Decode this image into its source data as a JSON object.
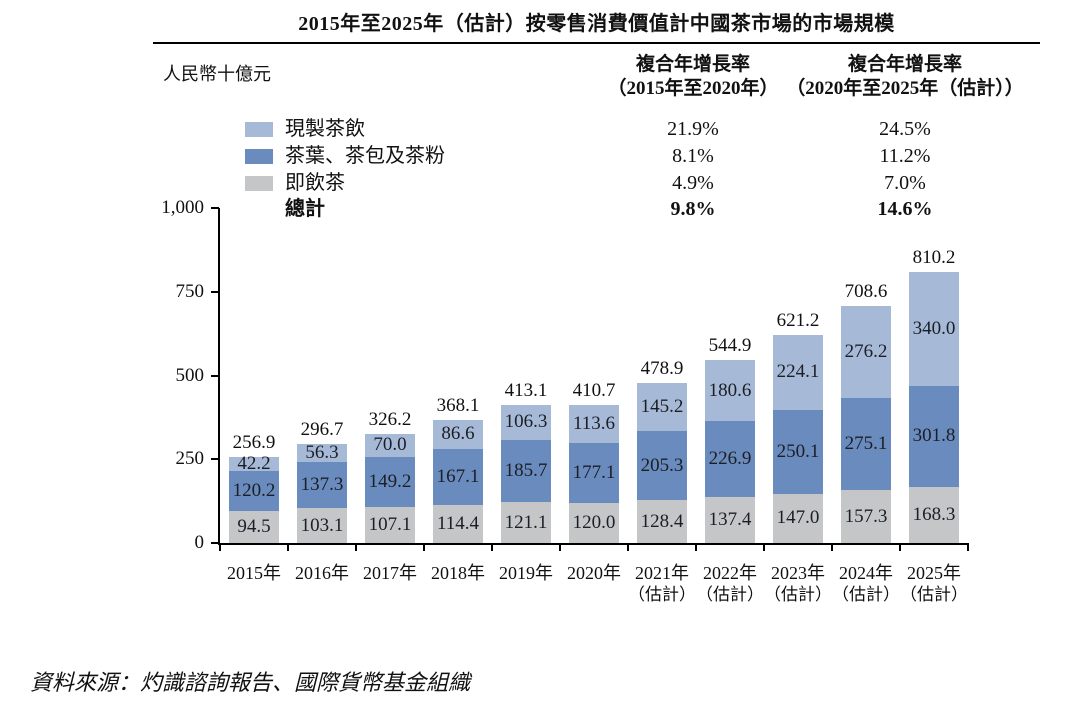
{
  "title": "2015年至2025年（估計）按零售消費價值計中國茶市場的市場規模",
  "unit_label": "人民幣十億元",
  "cagr_columns": [
    {
      "line1": "複合年增長率",
      "line2": "（2015年至2020年）"
    },
    {
      "line1": "複合年增長率",
      "line2": "（2020年至2025年（估計））"
    }
  ],
  "legend": [
    {
      "label": "現製茶飲",
      "color": "#a6bad7",
      "cagr_2015_2020": "21.9%",
      "cagr_2020_2025": "24.5%"
    },
    {
      "label": "茶葉、茶包及茶粉",
      "color": "#6a8bbd",
      "cagr_2015_2020": "8.1%",
      "cagr_2020_2025": "11.2%"
    },
    {
      "label": "即飲茶",
      "color": "#c5c6c8",
      "cagr_2015_2020": "4.9%",
      "cagr_2020_2025": "7.0%"
    },
    {
      "label": "總計",
      "cagr_2015_2020": "9.8%",
      "cagr_2020_2025": "14.6%"
    }
  ],
  "chart_data": {
    "type": "bar",
    "stacked": true,
    "title": "2015年至2025年（估計）按零售消費價值計中國茶市場的市場規模",
    "ylabel": "人民幣十億元",
    "ylim": [
      0,
      1000
    ],
    "yticks": [
      0,
      250,
      500,
      750,
      1000
    ],
    "ytick_labels": [
      "0",
      "250",
      "500",
      "750",
      "1,000"
    ],
    "grid": false,
    "legend_position": "top-left",
    "categories": [
      {
        "year": "2015年",
        "note": ""
      },
      {
        "year": "2016年",
        "note": ""
      },
      {
        "year": "2017年",
        "note": ""
      },
      {
        "year": "2018年",
        "note": ""
      },
      {
        "year": "2019年",
        "note": ""
      },
      {
        "year": "2020年",
        "note": ""
      },
      {
        "year": "2021年",
        "note": "（估計）"
      },
      {
        "year": "2022年",
        "note": "（估計）"
      },
      {
        "year": "2023年",
        "note": "（估計）"
      },
      {
        "year": "2024年",
        "note": "（估計）"
      },
      {
        "year": "2025年",
        "note": "（估計）"
      }
    ],
    "series": [
      {
        "name": "現製茶飲",
        "color": "#a6bad7",
        "position": "top",
        "values": [
          42.2,
          56.3,
          70.0,
          86.6,
          106.3,
          113.6,
          145.2,
          180.6,
          224.1,
          276.2,
          340.0
        ]
      },
      {
        "name": "茶葉、茶包及茶粉",
        "color": "#6a8bbd",
        "position": "middle",
        "values": [
          120.2,
          137.3,
          149.2,
          167.1,
          185.7,
          177.1,
          205.3,
          226.9,
          250.1,
          275.1,
          301.8
        ]
      },
      {
        "name": "即飲茶",
        "color": "#c5c6c8",
        "position": "bottom",
        "values": [
          94.5,
          103.1,
          107.1,
          114.4,
          121.1,
          120.0,
          128.4,
          137.4,
          147.0,
          157.3,
          168.3
        ]
      }
    ],
    "totals": [
      256.9,
      296.7,
      326.2,
      368.1,
      413.1,
      410.7,
      478.9,
      544.9,
      621.2,
      708.6,
      810.2
    ]
  },
  "source": "資料來源：灼識諮詢報告、國際貨幣基金組織"
}
